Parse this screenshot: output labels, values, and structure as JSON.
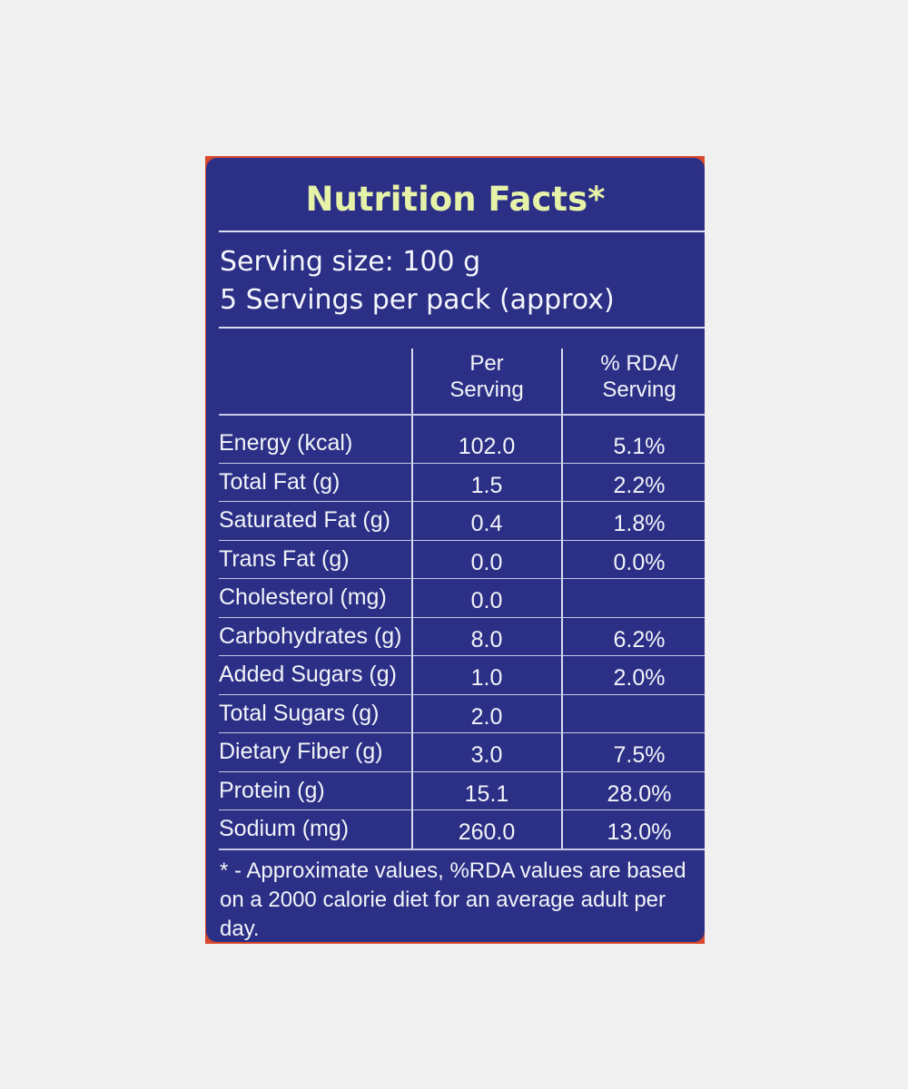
{
  "label": {
    "title": "Nutrition Facts*",
    "serving_size": "Serving size: 100 g",
    "servings_per_pack": "5 Servings per pack (approx)",
    "col_per_line1": "Per",
    "col_per_line2": "Serving",
    "col_rda_line1": "% RDA/",
    "col_rda_line2": "Serving",
    "rows": [
      {
        "name": "Energy (kcal)",
        "per": "102.0",
        "rda": "5.1%"
      },
      {
        "name": "Total Fat (g)",
        "per": "1.5",
        "rda": "2.2%"
      },
      {
        "name": "Saturated Fat (g)",
        "per": "0.4",
        "rda": "1.8%"
      },
      {
        "name": "Trans Fat (g)",
        "per": "0.0",
        "rda": "0.0%"
      },
      {
        "name": "Cholesterol (mg)",
        "per": "0.0",
        "rda": ""
      },
      {
        "name": "Carbohydrates (g)",
        "per": "8.0",
        "rda": "6.2%"
      },
      {
        "name": "Added Sugars (g)",
        "per": "1.0",
        "rda": "2.0%"
      },
      {
        "name": "Total Sugars (g)",
        "per": "2.0",
        "rda": ""
      },
      {
        "name": "Dietary Fiber (g)",
        "per": "3.0",
        "rda": "7.5%"
      },
      {
        "name": "Protein (g)",
        "per": "15.1",
        "rda": "28.0%"
      },
      {
        "name": "Sodium (mg)",
        "per": "260.0",
        "rda": "13.0%"
      }
    ],
    "footnote": "* - Approximate values, %RDA values are based on a 2000 calorie diet for an average adult per day."
  },
  "colors": {
    "panel": "#2b2f86",
    "border": "#d9472c",
    "title": "#e6f2a8",
    "text": "#f2f4f8"
  }
}
